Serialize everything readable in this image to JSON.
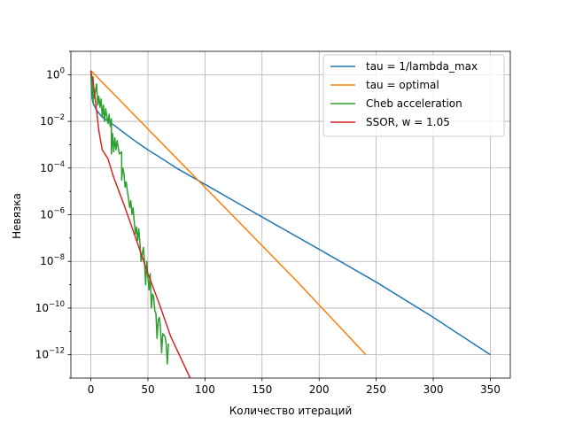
{
  "chart_data": {
    "type": "line",
    "title": "",
    "xlabel": "Количество итераций",
    "ylabel": "Невязка",
    "xlim": [
      -17.5,
      367.5
    ],
    "ylim": [
      1e-13,
      10.0
    ],
    "yscale": "log",
    "grid": true,
    "legend_position": "top-right",
    "x_ticks": [
      0,
      50,
      100,
      150,
      200,
      250,
      300,
      350
    ],
    "y_ticks": [
      {
        "exp": 0,
        "label": "10",
        "sup": "0"
      },
      {
        "exp": -2,
        "label": "10",
        "sup": "−2"
      },
      {
        "exp": -4,
        "label": "10",
        "sup": "−4"
      },
      {
        "exp": -6,
        "label": "10",
        "sup": "−6"
      },
      {
        "exp": -8,
        "label": "10",
        "sup": "−8"
      },
      {
        "exp": -10,
        "label": "10",
        "sup": "−10"
      },
      {
        "exp": -12,
        "label": "10",
        "sup": "−12"
      }
    ],
    "series": [
      {
        "name": "tau = 1/lambda_max",
        "color": "#1f77b4",
        "points": [
          [
            0,
            1.5
          ],
          [
            1,
            0.1
          ],
          [
            2,
            0.06
          ],
          [
            5,
            0.03
          ],
          [
            10,
            0.015
          ],
          [
            20,
            0.007
          ],
          [
            30,
            0.003
          ],
          [
            40,
            0.0013
          ],
          [
            50,
            0.0006
          ],
          [
            60,
            0.0003
          ],
          [
            75,
            0.0001
          ],
          [
            100,
            2e-05
          ],
          [
            125,
            4e-06
          ],
          [
            150,
            8e-07
          ],
          [
            200,
            3.3e-08
          ],
          [
            250,
            1.3e-09
          ],
          [
            300,
            4e-11
          ],
          [
            350,
            1e-12
          ]
        ]
      },
      {
        "name": "tau = optimal",
        "color": "#ff7f0e",
        "points": [
          [
            0,
            1.5
          ],
          [
            60,
            0.0015
          ],
          [
            120,
            1.5e-06
          ],
          [
            180,
            1.5e-09
          ],
          [
            241,
            1e-12
          ]
        ]
      },
      {
        "name": "Cheb acceleration",
        "color": "#2ca02c",
        "points": [
          [
            0,
            1.5
          ],
          [
            2,
            0.06
          ],
          [
            2,
            0.8
          ],
          [
            3,
            0.1
          ],
          [
            5,
            0.4
          ],
          [
            6,
            0.05
          ],
          [
            7,
            0.12
          ],
          [
            8,
            0.04
          ],
          [
            9,
            0.09
          ],
          [
            10,
            0.015
          ],
          [
            11,
            0.05
          ],
          [
            12,
            0.01
          ],
          [
            13,
            0.035
          ],
          [
            15,
            0.008
          ],
          [
            16,
            0.02
          ],
          [
            17,
            0.006
          ],
          [
            18,
            0.013
          ],
          [
            18,
            0.006
          ],
          [
            18,
            0.0004
          ],
          [
            19,
            0.003
          ],
          [
            20,
            0.0005
          ],
          [
            21,
            0.002
          ],
          [
            22,
            0.0006
          ],
          [
            23,
            0.0015
          ],
          [
            25,
            0.0004
          ],
          [
            27,
            0.0005
          ],
          [
            27,
            3e-05
          ],
          [
            28,
            0.0001
          ],
          [
            29,
            6e-05
          ],
          [
            30,
            1.5e-05
          ],
          [
            31,
            2.5e-05
          ],
          [
            32,
            1e-05
          ],
          [
            33,
            5e-06
          ],
          [
            34,
            2e-06
          ],
          [
            35,
            4e-06
          ],
          [
            36,
            1e-06
          ],
          [
            37,
            2e-06
          ],
          [
            38,
            5e-07
          ],
          [
            39,
            1.5e-07
          ],
          [
            40,
            3e-07
          ],
          [
            41,
            8e-08
          ],
          [
            42,
            2.5e-07
          ],
          [
            43,
            6e-08
          ],
          [
            44,
            1e-08
          ],
          [
            46,
            4e-08
          ],
          [
            47,
            1e-08
          ],
          [
            48,
            1e-09
          ],
          [
            49,
            1e-08
          ],
          [
            50,
            2e-09
          ],
          [
            51,
            6e-10
          ],
          [
            52,
            3e-09
          ],
          [
            53,
            1e-10
          ],
          [
            54,
            4e-10
          ],
          [
            55,
            3e-10
          ],
          [
            56,
            8e-11
          ],
          [
            57,
            6e-11
          ],
          [
            58,
            5e-12
          ],
          [
            59,
            3e-11
          ],
          [
            60,
            4e-11
          ],
          [
            61,
            1.5e-11
          ],
          [
            62,
            1.2e-12
          ],
          [
            63,
            8e-12
          ],
          [
            65,
            6e-12
          ],
          [
            66,
            3e-12
          ],
          [
            67,
            4e-13
          ],
          [
            68,
            3e-12
          ]
        ]
      },
      {
        "name": "SSOR, w = 1.05",
        "color": "#d62728",
        "points": [
          [
            0,
            1.5
          ],
          [
            3,
            0.2
          ],
          [
            5,
            0.03
          ],
          [
            7,
            0.004
          ],
          [
            10,
            0.0006
          ],
          [
            15,
            0.00025
          ],
          [
            20,
            4e-05
          ],
          [
            30,
            2e-06
          ],
          [
            40,
            8e-08
          ],
          [
            50,
            3e-09
          ],
          [
            60,
            1.5e-10
          ],
          [
            70,
            6e-12
          ],
          [
            87,
            1e-13
          ]
        ]
      }
    ]
  }
}
